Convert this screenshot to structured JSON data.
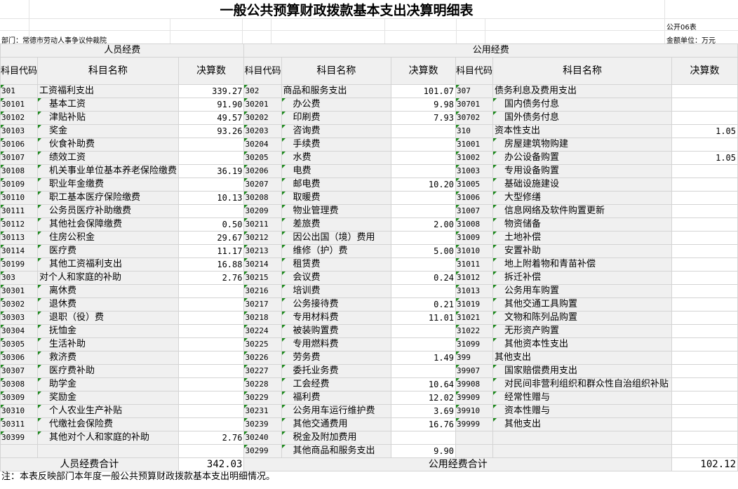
{
  "title": "一般公共预算财政拨款基本支出决算明细表",
  "form_no": "公开06表",
  "department": "部门：常德市劳动人事争议仲裁院",
  "unit": "金额单位：万元",
  "sections": {
    "personnel": "人员经费",
    "public": "公用经费"
  },
  "headers": {
    "code": "科目代码",
    "name": "科目名称",
    "value": "决算数"
  },
  "columns": [
    [
      {
        "code": "301",
        "name": "工资福利支出",
        "value": "339.27",
        "level": 1
      },
      {
        "code": "30101",
        "name": "基本工资",
        "value": "91.90",
        "level": 2
      },
      {
        "code": "30102",
        "name": "津贴补贴",
        "value": "49.57",
        "level": 2
      },
      {
        "code": "30103",
        "name": "奖金",
        "value": "93.26",
        "level": 2
      },
      {
        "code": "30106",
        "name": "伙食补助费",
        "value": "",
        "level": 2
      },
      {
        "code": "30107",
        "name": "绩效工资",
        "value": "",
        "level": 2
      },
      {
        "code": "30108",
        "name": "机关事业单位基本养老保险缴费",
        "value": "36.19",
        "level": 2
      },
      {
        "code": "30109",
        "name": "职业年金缴费",
        "value": "",
        "level": 2
      },
      {
        "code": "30110",
        "name": "职工基本医疗保险缴费",
        "value": "10.13",
        "level": 2
      },
      {
        "code": "30111",
        "name": "公务员医疗补助缴费",
        "value": "",
        "level": 2
      },
      {
        "code": "30112",
        "name": "其他社会保障缴费",
        "value": "0.50",
        "level": 2
      },
      {
        "code": "30113",
        "name": "住房公积金",
        "value": "29.67",
        "level": 2
      },
      {
        "code": "30114",
        "name": "医疗费",
        "value": "11.17",
        "level": 2
      },
      {
        "code": "30199",
        "name": "其他工资福利支出",
        "value": "16.88",
        "level": 2
      },
      {
        "code": "303",
        "name": "对个人和家庭的补助",
        "value": "2.76",
        "level": 1
      },
      {
        "code": "30301",
        "name": "离休费",
        "value": "",
        "level": 2
      },
      {
        "code": "30302",
        "name": "退休费",
        "value": "",
        "level": 2
      },
      {
        "code": "30303",
        "name": "退职（役）费",
        "value": "",
        "level": 2
      },
      {
        "code": "30304",
        "name": "抚恤金",
        "value": "",
        "level": 2
      },
      {
        "code": "30305",
        "name": "生活补助",
        "value": "",
        "level": 2
      },
      {
        "code": "30306",
        "name": "救济费",
        "value": "",
        "level": 2
      },
      {
        "code": "30307",
        "name": "医疗费补助",
        "value": "",
        "level": 2
      },
      {
        "code": "30308",
        "name": "助学金",
        "value": "",
        "level": 2
      },
      {
        "code": "30309",
        "name": "奖励金",
        "value": "",
        "level": 2
      },
      {
        "code": "30310",
        "name": "个人农业生产补贴",
        "value": "",
        "level": 2
      },
      {
        "code": "30311",
        "name": "代缴社会保险费",
        "value": "",
        "level": 2
      },
      {
        "code": "30399",
        "name": "其他对个人和家庭的补助",
        "value": "2.76",
        "level": 2
      },
      {
        "code": "",
        "name": "",
        "value": "",
        "level": 0
      }
    ],
    [
      {
        "code": "302",
        "name": "商品和服务支出",
        "value": "101.07",
        "level": 1
      },
      {
        "code": "30201",
        "name": "办公费",
        "value": "9.98",
        "level": 2
      },
      {
        "code": "30202",
        "name": "印刷费",
        "value": "7.93",
        "level": 2
      },
      {
        "code": "30203",
        "name": "咨询费",
        "value": "",
        "level": 2
      },
      {
        "code": "30204",
        "name": "手续费",
        "value": "",
        "level": 2
      },
      {
        "code": "30205",
        "name": "水费",
        "value": "",
        "level": 2
      },
      {
        "code": "30206",
        "name": "电费",
        "value": "",
        "level": 2
      },
      {
        "code": "30207",
        "name": "邮电费",
        "value": "10.20",
        "level": 2
      },
      {
        "code": "30208",
        "name": "取暖费",
        "value": "",
        "level": 2
      },
      {
        "code": "30209",
        "name": "物业管理费",
        "value": "",
        "level": 2
      },
      {
        "code": "30211",
        "name": "差旅费",
        "value": "2.00",
        "level": 2
      },
      {
        "code": "30212",
        "name": "因公出国（境）费用",
        "value": "",
        "level": 2
      },
      {
        "code": "30213",
        "name": "维修（护）费",
        "value": "5.00",
        "level": 2
      },
      {
        "code": "30214",
        "name": "租赁费",
        "value": "",
        "level": 2
      },
      {
        "code": "30215",
        "name": "会议费",
        "value": "0.24",
        "level": 2
      },
      {
        "code": "30216",
        "name": "培训费",
        "value": "",
        "level": 2
      },
      {
        "code": "30217",
        "name": "公务接待费",
        "value": "0.21",
        "level": 2
      },
      {
        "code": "30218",
        "name": "专用材料费",
        "value": "11.01",
        "level": 2
      },
      {
        "code": "30224",
        "name": "被装购置费",
        "value": "",
        "level": 2
      },
      {
        "code": "30225",
        "name": "专用燃料费",
        "value": "",
        "level": 2
      },
      {
        "code": "30226",
        "name": "劳务费",
        "value": "1.49",
        "level": 2
      },
      {
        "code": "30227",
        "name": "委托业务费",
        "value": "",
        "level": 2
      },
      {
        "code": "30228",
        "name": "工会经费",
        "value": "10.64",
        "level": 2
      },
      {
        "code": "30229",
        "name": "福利费",
        "value": "12.02",
        "level": 2
      },
      {
        "code": "30231",
        "name": "公务用车运行维护费",
        "value": "3.69",
        "level": 2
      },
      {
        "code": "30239",
        "name": "其他交通费用",
        "value": "16.76",
        "level": 2
      },
      {
        "code": "30240",
        "name": "税金及附加费用",
        "value": "",
        "level": 2
      },
      {
        "code": "30299",
        "name": "其他商品和服务支出",
        "value": "9.90",
        "level": 2
      }
    ],
    [
      {
        "code": "307",
        "name": "债务利息及费用支出",
        "value": "",
        "level": 1
      },
      {
        "code": "30701",
        "name": "国内债务付息",
        "value": "",
        "level": 2
      },
      {
        "code": "30702",
        "name": "国外债务付息",
        "value": "",
        "level": 2
      },
      {
        "code": "310",
        "name": "资本性支出",
        "value": "1.05",
        "level": 1
      },
      {
        "code": "31001",
        "name": "房屋建筑物购建",
        "value": "",
        "level": 2
      },
      {
        "code": "31002",
        "name": "办公设备购置",
        "value": "1.05",
        "level": 2
      },
      {
        "code": "31003",
        "name": "专用设备购置",
        "value": "",
        "level": 2
      },
      {
        "code": "31005",
        "name": "基础设施建设",
        "value": "",
        "level": 2
      },
      {
        "code": "31006",
        "name": "大型修缮",
        "value": "",
        "level": 2
      },
      {
        "code": "31007",
        "name": "信息网络及软件购置更新",
        "value": "",
        "level": 2
      },
      {
        "code": "31008",
        "name": "物资储备",
        "value": "",
        "level": 2
      },
      {
        "code": "31009",
        "name": "土地补偿",
        "value": "",
        "level": 2
      },
      {
        "code": "31010",
        "name": "安置补助",
        "value": "",
        "level": 2
      },
      {
        "code": "31011",
        "name": "地上附着物和青苗补偿",
        "value": "",
        "level": 2
      },
      {
        "code": "31012",
        "name": "拆迁补偿",
        "value": "",
        "level": 2
      },
      {
        "code": "31013",
        "name": "公务用车购置",
        "value": "",
        "level": 2
      },
      {
        "code": "31019",
        "name": "其他交通工具购置",
        "value": "",
        "level": 2
      },
      {
        "code": "31021",
        "name": "文物和陈列品购置",
        "value": "",
        "level": 2
      },
      {
        "code": "31022",
        "name": "无形资产购置",
        "value": "",
        "level": 2
      },
      {
        "code": "31099",
        "name": "其他资本性支出",
        "value": "",
        "level": 2
      },
      {
        "code": "399",
        "name": "其他支出",
        "value": "",
        "level": 1
      },
      {
        "code": "39907",
        "name": "国家赔偿费用支出",
        "value": "",
        "level": 2
      },
      {
        "code": "39908",
        "name": "对民间非营利组织和群众性自治组织补贴",
        "value": "",
        "level": 2
      },
      {
        "code": "39909",
        "name": "经常性赠与",
        "value": "",
        "level": 2
      },
      {
        "code": "39910",
        "name": "资本性赠与",
        "value": "",
        "level": 2
      },
      {
        "code": "39999",
        "name": "其他支出",
        "value": "",
        "level": 2
      },
      {
        "code": "",
        "name": "",
        "value": "",
        "level": 0
      },
      {
        "code": "",
        "name": "",
        "value": "",
        "level": 0
      }
    ]
  ],
  "totals": {
    "personnel_label": "人员经费合计",
    "personnel_value": "342.03",
    "public_label": "公用经费合计",
    "public_value": "102.12"
  },
  "note": "注：本表反映部门本年度一般公共预算财政拨款基本支出明细情况。",
  "colors": {
    "cell_bg": "#f0f0f0",
    "grid": "#d4d4d4",
    "marker": "#1e8a1e"
  }
}
